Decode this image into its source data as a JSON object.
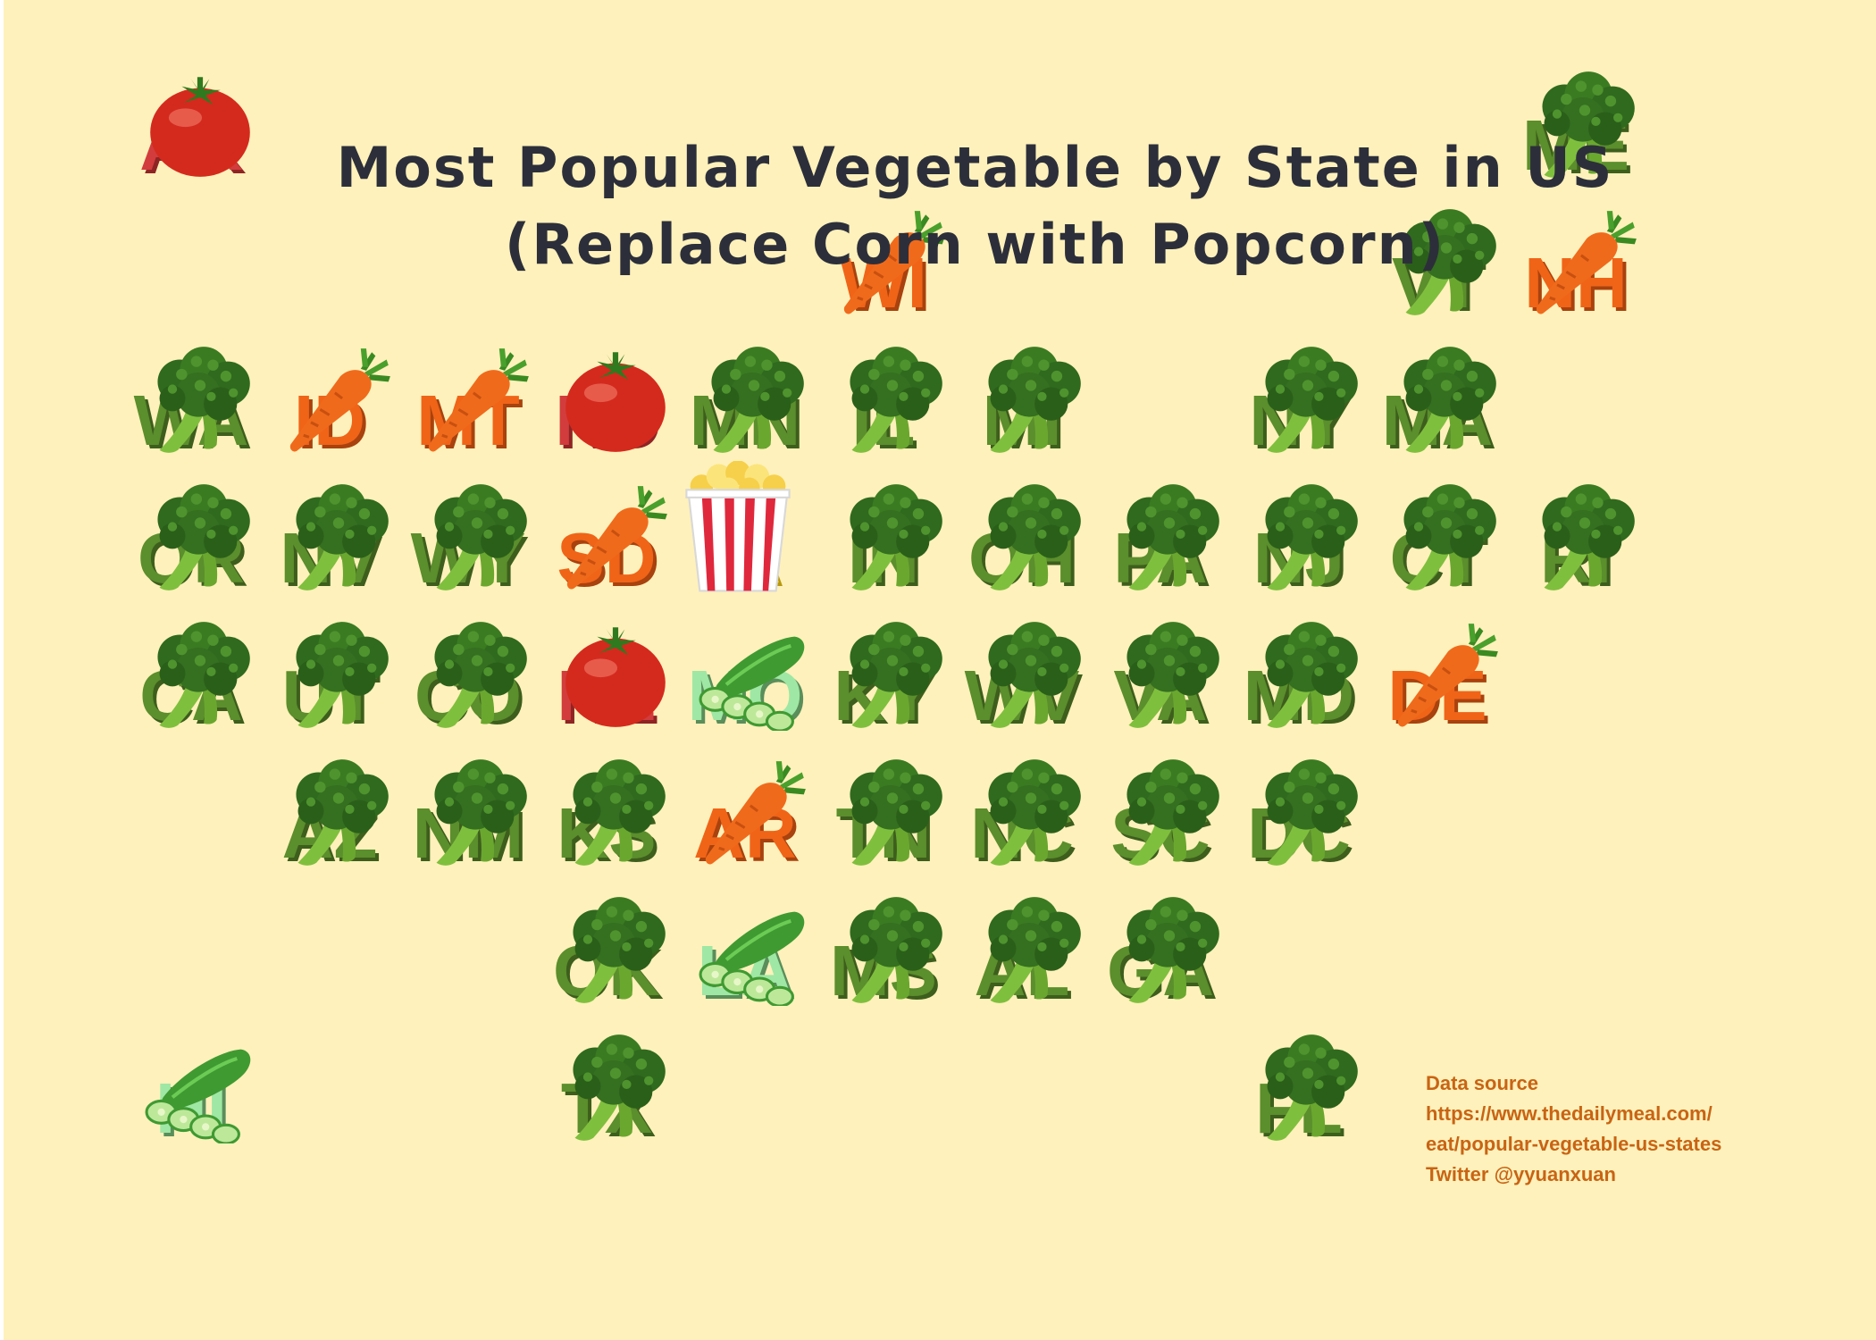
{
  "title_line1": "Most Popular Vegetable by State in US",
  "title_line2": "(Replace Corn with Popcorn)",
  "source": {
    "line1": "Data source",
    "line2": "https://www.thedailymeal.com/",
    "line3": "eat/popular-vegetable-us-states",
    "line4": "Twitter @yyuanxuan"
  },
  "colors": {
    "background": "#fff1bb",
    "title": "#2c2f3a",
    "broccoli": "#5b8e2c",
    "carrot": "#f06418",
    "tomato": "#d23c3c",
    "cucumber": "#9fe7a4",
    "popcorn": "#ffd21e",
    "source": "#c86414"
  },
  "vegetable_icons": {
    "broccoli": "broccoli-icon",
    "carrot": "carrot-icon",
    "tomato": "tomato-icon",
    "cucumber": "cucumber-icon",
    "popcorn": "popcorn-icon"
  },
  "chart_data": {
    "type": "table",
    "columns": [
      "state",
      "vegetable"
    ],
    "rows": [
      {
        "state": "AK",
        "vegetable": "tomato",
        "col": 0,
        "row": 0
      },
      {
        "state": "ME",
        "vegetable": "broccoli",
        "col": 10,
        "row": 0
      },
      {
        "state": "WI",
        "vegetable": "carrot",
        "col": 5,
        "row": 1
      },
      {
        "state": "VT",
        "vegetable": "broccoli",
        "col": 9,
        "row": 1
      },
      {
        "state": "NH",
        "vegetable": "carrot",
        "col": 10,
        "row": 1
      },
      {
        "state": "WA",
        "vegetable": "broccoli",
        "col": 0,
        "row": 2
      },
      {
        "state": "ID",
        "vegetable": "carrot",
        "col": 1,
        "row": 2
      },
      {
        "state": "MT",
        "vegetable": "carrot",
        "col": 2,
        "row": 2
      },
      {
        "state": "ND",
        "vegetable": "tomato",
        "col": 3,
        "row": 2
      },
      {
        "state": "MN",
        "vegetable": "broccoli",
        "col": 4,
        "row": 2
      },
      {
        "state": "IL",
        "vegetable": "broccoli",
        "col": 5,
        "row": 2
      },
      {
        "state": "MI",
        "vegetable": "broccoli",
        "col": 6,
        "row": 2
      },
      {
        "state": "NY",
        "vegetable": "broccoli",
        "col": 8,
        "row": 2
      },
      {
        "state": "MA",
        "vegetable": "broccoli",
        "col": 9,
        "row": 2
      },
      {
        "state": "OR",
        "vegetable": "broccoli",
        "col": 0,
        "row": 3
      },
      {
        "state": "NV",
        "vegetable": "broccoli",
        "col": 1,
        "row": 3
      },
      {
        "state": "WY",
        "vegetable": "broccoli",
        "col": 2,
        "row": 3
      },
      {
        "state": "SD",
        "vegetable": "carrot",
        "col": 3,
        "row": 3
      },
      {
        "state": "IA",
        "vegetable": "popcorn",
        "col": 4,
        "row": 3
      },
      {
        "state": "IN",
        "vegetable": "broccoli",
        "col": 5,
        "row": 3
      },
      {
        "state": "OH",
        "vegetable": "broccoli",
        "col": 6,
        "row": 3
      },
      {
        "state": "PA",
        "vegetable": "broccoli",
        "col": 7,
        "row": 3
      },
      {
        "state": "NJ",
        "vegetable": "broccoli",
        "col": 8,
        "row": 3
      },
      {
        "state": "CT",
        "vegetable": "broccoli",
        "col": 9,
        "row": 3
      },
      {
        "state": "RI",
        "vegetable": "broccoli",
        "col": 10,
        "row": 3
      },
      {
        "state": "CA",
        "vegetable": "broccoli",
        "col": 0,
        "row": 4
      },
      {
        "state": "UT",
        "vegetable": "broccoli",
        "col": 1,
        "row": 4
      },
      {
        "state": "CO",
        "vegetable": "broccoli",
        "col": 2,
        "row": 4
      },
      {
        "state": "NE",
        "vegetable": "tomato",
        "col": 3,
        "row": 4
      },
      {
        "state": "MO",
        "vegetable": "cucumber",
        "col": 4,
        "row": 4
      },
      {
        "state": "KY",
        "vegetable": "broccoli",
        "col": 5,
        "row": 4
      },
      {
        "state": "WV",
        "vegetable": "broccoli",
        "col": 6,
        "row": 4
      },
      {
        "state": "VA",
        "vegetable": "broccoli",
        "col": 7,
        "row": 4
      },
      {
        "state": "MD",
        "vegetable": "broccoli",
        "col": 8,
        "row": 4
      },
      {
        "state": "DE",
        "vegetable": "carrot",
        "col": 9,
        "row": 4
      },
      {
        "state": "AZ",
        "vegetable": "broccoli",
        "col": 1,
        "row": 5
      },
      {
        "state": "NM",
        "vegetable": "broccoli",
        "col": 2,
        "row": 5
      },
      {
        "state": "KS",
        "vegetable": "broccoli",
        "col": 3,
        "row": 5
      },
      {
        "state": "AR",
        "vegetable": "carrot",
        "col": 4,
        "row": 5
      },
      {
        "state": "TN",
        "vegetable": "broccoli",
        "col": 5,
        "row": 5
      },
      {
        "state": "NC",
        "vegetable": "broccoli",
        "col": 6,
        "row": 5
      },
      {
        "state": "SC",
        "vegetable": "broccoli",
        "col": 7,
        "row": 5
      },
      {
        "state": "DC",
        "vegetable": "broccoli",
        "col": 8,
        "row": 5
      },
      {
        "state": "OK",
        "vegetable": "broccoli",
        "col": 3,
        "row": 6
      },
      {
        "state": "LA",
        "vegetable": "cucumber",
        "col": 4,
        "row": 6
      },
      {
        "state": "MS",
        "vegetable": "broccoli",
        "col": 5,
        "row": 6
      },
      {
        "state": "AL",
        "vegetable": "broccoli",
        "col": 6,
        "row": 6
      },
      {
        "state": "GA",
        "vegetable": "broccoli",
        "col": 7,
        "row": 6
      },
      {
        "state": "HI",
        "vegetable": "cucumber",
        "col": 0,
        "row": 7
      },
      {
        "state": "TX",
        "vegetable": "broccoli",
        "col": 3,
        "row": 7
      },
      {
        "state": "FL",
        "vegetable": "broccoli",
        "col": 8,
        "row": 7
      }
    ]
  }
}
